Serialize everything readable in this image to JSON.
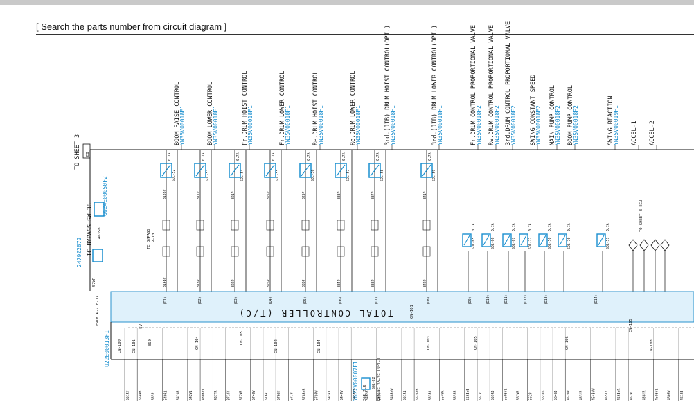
{
  "page": {
    "header": "[ Search the parts number from circuit diagram ]"
  },
  "diagram": {
    "to_sheet_3": "TO SHEET 3",
    "eb": "EB",
    "ref_sheet": "GG24E00050F2",
    "tc_bypass_sw": "TC BYPASS SW 38",
    "tc_bypass_sw_ref": "2479Z2872",
    "tc_bypass_label": "TC BYPASS",
    "tc_bypass_r": "R-70",
    "wire_57wr": "57WR",
    "wire_463sb": "463Sb",
    "from_label": "FROM P-7 F-17",
    "controller_title": "TOTAL CONTROLLER (T/C)",
    "controller_ref": "U22E00013F1",
    "cn101_upper": "CN-101",
    "cn101": "CN-101",
    "cn100": "CN-100",
    "cn104": "CN-104",
    "cn105": "CN-105",
    "cn102": "CN-102",
    "cn104b": "CN-104",
    "cn103": "CN-103",
    "cn105b": "CN-105",
    "cn106": "CN-106",
    "cn103b": "CN-103",
    "cn105c": "CN-105",
    "v5": "+5V",
    "r360": "360",
    "to_sheet_8": "TO SHEET 8 ECU",
    "engine_valve": "ENGINE VALVE (OPT.)",
    "engine_valve_ref": "YN22V00007F1",
    "sol62": "SOL-62",
    "w_2gr_2lr": "2GR 2LR",
    "functions": [
      {
        "label": "BOOM RAISE CONTROL",
        "ref": "YN35V00018F1"
      },
      {
        "label": "BOOM LOWER CONTROL",
        "ref": "YN35V00018F1"
      },
      {
        "label": "Fr.DRUM HOIST CONTROL",
        "ref": "YN35V00018F1"
      },
      {
        "label": "Fr.DRUM LOWER CONTROL",
        "ref": "YN35V00018F1"
      },
      {
        "label": "Re.DRUM HOIST CONTROL",
        "ref": "YN35V00018F1"
      },
      {
        "label": "Re.DRUM LOWER CONTROL",
        "ref": "YN35V00018F1"
      },
      {
        "label": "3rd.(JIB) DRUM HOIST CONTROL(OPT.)",
        "ref": "YN35V00018F1"
      },
      {
        "label": "3rd.(JIB) DRUM LOWER CONTROL(OPT.)",
        "ref": "YN35V00018F1"
      },
      {
        "label": "Fr.DRUM CONTROL PROPORTIONAL VALVE",
        "ref": "YN35V00018F2"
      },
      {
        "label": "Re.DRUM CONTROL PROPORTIONAL VALVE",
        "ref": "YN35V00018F2"
      },
      {
        "label": "3rd.DRUM CONTROL PROPORTIONAL VALVE",
        "ref": "YN35V00018F2"
      },
      {
        "label": "SWING CONSTANT SPEED",
        "ref": "YN35V00018F2"
      },
      {
        "label": "MAIN PUMP CONTROL",
        "ref": "YN35V00018F2"
      },
      {
        "label": "BOOM PUMP CONTROL",
        "ref": "YN35V00018F2"
      },
      {
        "label": "SWING REACTION",
        "ref": "YN35V00019F1"
      },
      {
        "label": "ACCEL-1",
        "ref": ""
      },
      {
        "label": "ACCEL-2",
        "ref": ""
      }
    ],
    "solenoids": [
      "SOL-52",
      "SOL-53",
      "SOL-54",
      "SOL-55",
      "SOL-56",
      "SOL-57",
      "SOL-58",
      "SOL-59"
    ],
    "sol_top_wires": [
      "313Br",
      "317P",
      "321P",
      "325P",
      "329P",
      "333P",
      "337P",
      "341P"
    ],
    "sol_bot_wires": [
      "314Br",
      "318P",
      "322P",
      "326P",
      "330P",
      "334P",
      "338P",
      "342P"
    ],
    "sol_rating": "0.7A",
    "small_sols": [
      "SOL-65",
      "SOL-66",
      "SOL-67",
      "SOL-72",
      "SOL-50",
      "SOL-70",
      "SOL-51"
    ],
    "c_labels": [
      "(D1)",
      "(D2)",
      "(D3)",
      "(D4)",
      "(D5)",
      "(D6)",
      "(D7)",
      "(D8)",
      "(D9)",
      "(D10)",
      "(D11)",
      "(D12)",
      "(D13)",
      "(D14)"
    ],
    "bottom_wires": [
      "551RY",
      "554WB",
      "555P",
      "540RL",
      "541GB",
      "542WL",
      "430BrL",
      "437TR",
      "371GY",
      "572WR",
      "574GW",
      "576R",
      "576GY",
      "577P",
      "578BrB",
      "579PW",
      "543RL",
      "544PW",
      "545BrL",
      "546SB",
      "547P",
      "548BrW",
      "551RL",
      "552GrB",
      "553BL",
      "554WR",
      "555RB",
      "556BrB",
      "557P",
      "559RB",
      "560BrL",
      "561WR",
      "562P",
      "563LG",
      "564GB",
      "452GW",
      "453YR",
      "454BrW",
      "455LY",
      "456BrR",
      "457W",
      "458YR",
      "459BrL",
      "460RW",
      "461SB"
    ]
  }
}
